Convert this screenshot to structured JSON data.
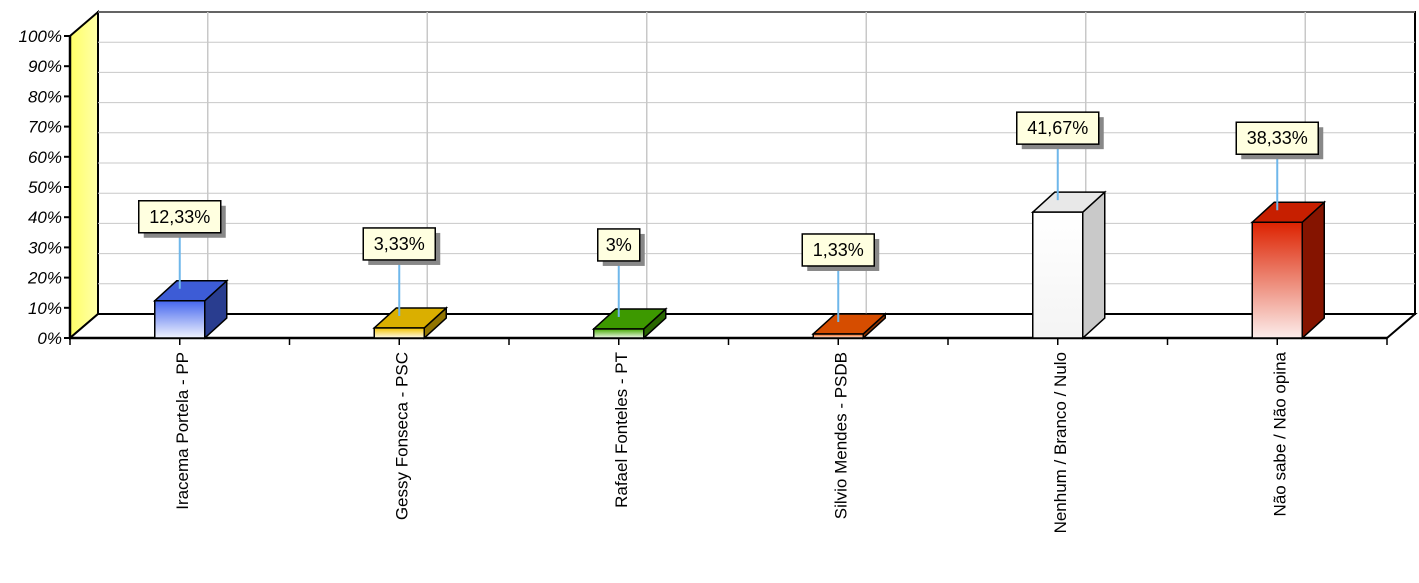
{
  "chart_data": {
    "type": "bar",
    "categories": [
      "Iracema Portela - PP",
      "Gessy Fonseca - PSC",
      "Rafael Fonteles - PT",
      "Silvio Mendes - PSDB",
      "Nenhum / Branco / Nulo",
      "Não sabe / Não opina"
    ],
    "values": [
      12.33,
      3.33,
      3,
      1.33,
      41.67,
      38.33
    ],
    "value_labels": [
      "12,33%",
      "3,33%",
      "3%",
      "1,33%",
      "41,67%",
      "38,33%"
    ],
    "colors": [
      "#4466ee",
      "#f2c200",
      "#44aa00",
      "#ee5500",
      "#ffffff",
      "#dd2200"
    ],
    "ylim": [
      0,
      100
    ],
    "yticks": [
      "0%",
      "10%",
      "20%",
      "30%",
      "40%",
      "50%",
      "60%",
      "70%",
      "80%",
      "90%",
      "100%"
    ],
    "title": "",
    "xlabel": "",
    "ylabel": "",
    "grid": true,
    "style": "3d"
  }
}
